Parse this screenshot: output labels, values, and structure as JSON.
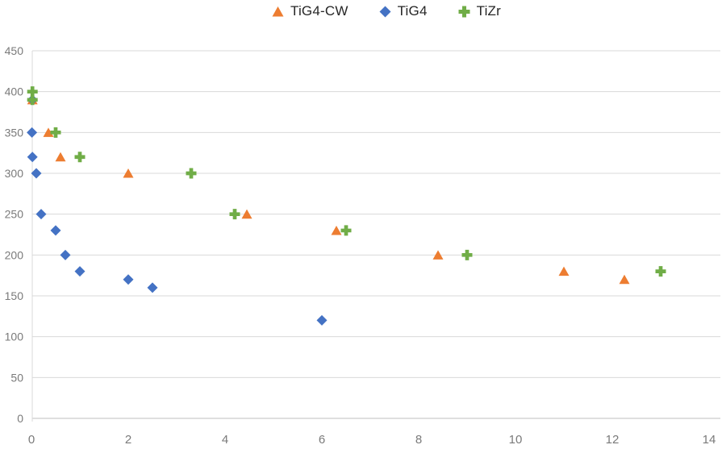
{
  "chart_data": {
    "type": "scatter",
    "title": "",
    "xlabel": "",
    "ylabel": "",
    "xlim": [
      0,
      14
    ],
    "ylim": [
      0,
      450
    ],
    "xticks": [
      0,
      2,
      4,
      6,
      8,
      10,
      12,
      14
    ],
    "yticks": [
      0,
      50,
      100,
      150,
      200,
      250,
      300,
      350,
      400,
      450
    ],
    "grid": "horizontal-only",
    "legend_position": "top-center",
    "series": [
      {
        "name": "TiG4-CW",
        "marker": "triangle",
        "color": "#ED7D31",
        "points": [
          [
            0.02,
            390
          ],
          [
            0.35,
            350
          ],
          [
            0.6,
            320
          ],
          [
            2.0,
            300
          ],
          [
            4.45,
            250
          ],
          [
            6.3,
            230
          ],
          [
            8.4,
            200
          ],
          [
            11.0,
            180
          ],
          [
            12.25,
            170
          ]
        ]
      },
      {
        "name": "TiG4",
        "marker": "diamond",
        "color": "#4472C4",
        "points": [
          [
            0.02,
            390
          ],
          [
            0.01,
            350
          ],
          [
            0.02,
            320
          ],
          [
            0.1,
            300
          ],
          [
            0.2,
            250
          ],
          [
            0.5,
            230
          ],
          [
            0.7,
            200
          ],
          [
            1.0,
            180
          ],
          [
            2.0,
            170
          ],
          [
            2.5,
            160
          ],
          [
            6.0,
            120
          ]
        ]
      },
      {
        "name": "TiZr",
        "marker": "plus",
        "color": "#70AD47",
        "points": [
          [
            0.02,
            400
          ],
          [
            0.02,
            390
          ],
          [
            0.5,
            350
          ],
          [
            1.0,
            320
          ],
          [
            3.3,
            300
          ],
          [
            4.2,
            250
          ],
          [
            6.5,
            230
          ],
          [
            9.0,
            200
          ],
          [
            13.0,
            180
          ]
        ]
      }
    ],
    "colors": {
      "gridline": "#d9d9d9",
      "axis_line": "#bfbfbf",
      "tick_label": "#7a7a7a",
      "legend_text": "#262626"
    }
  }
}
